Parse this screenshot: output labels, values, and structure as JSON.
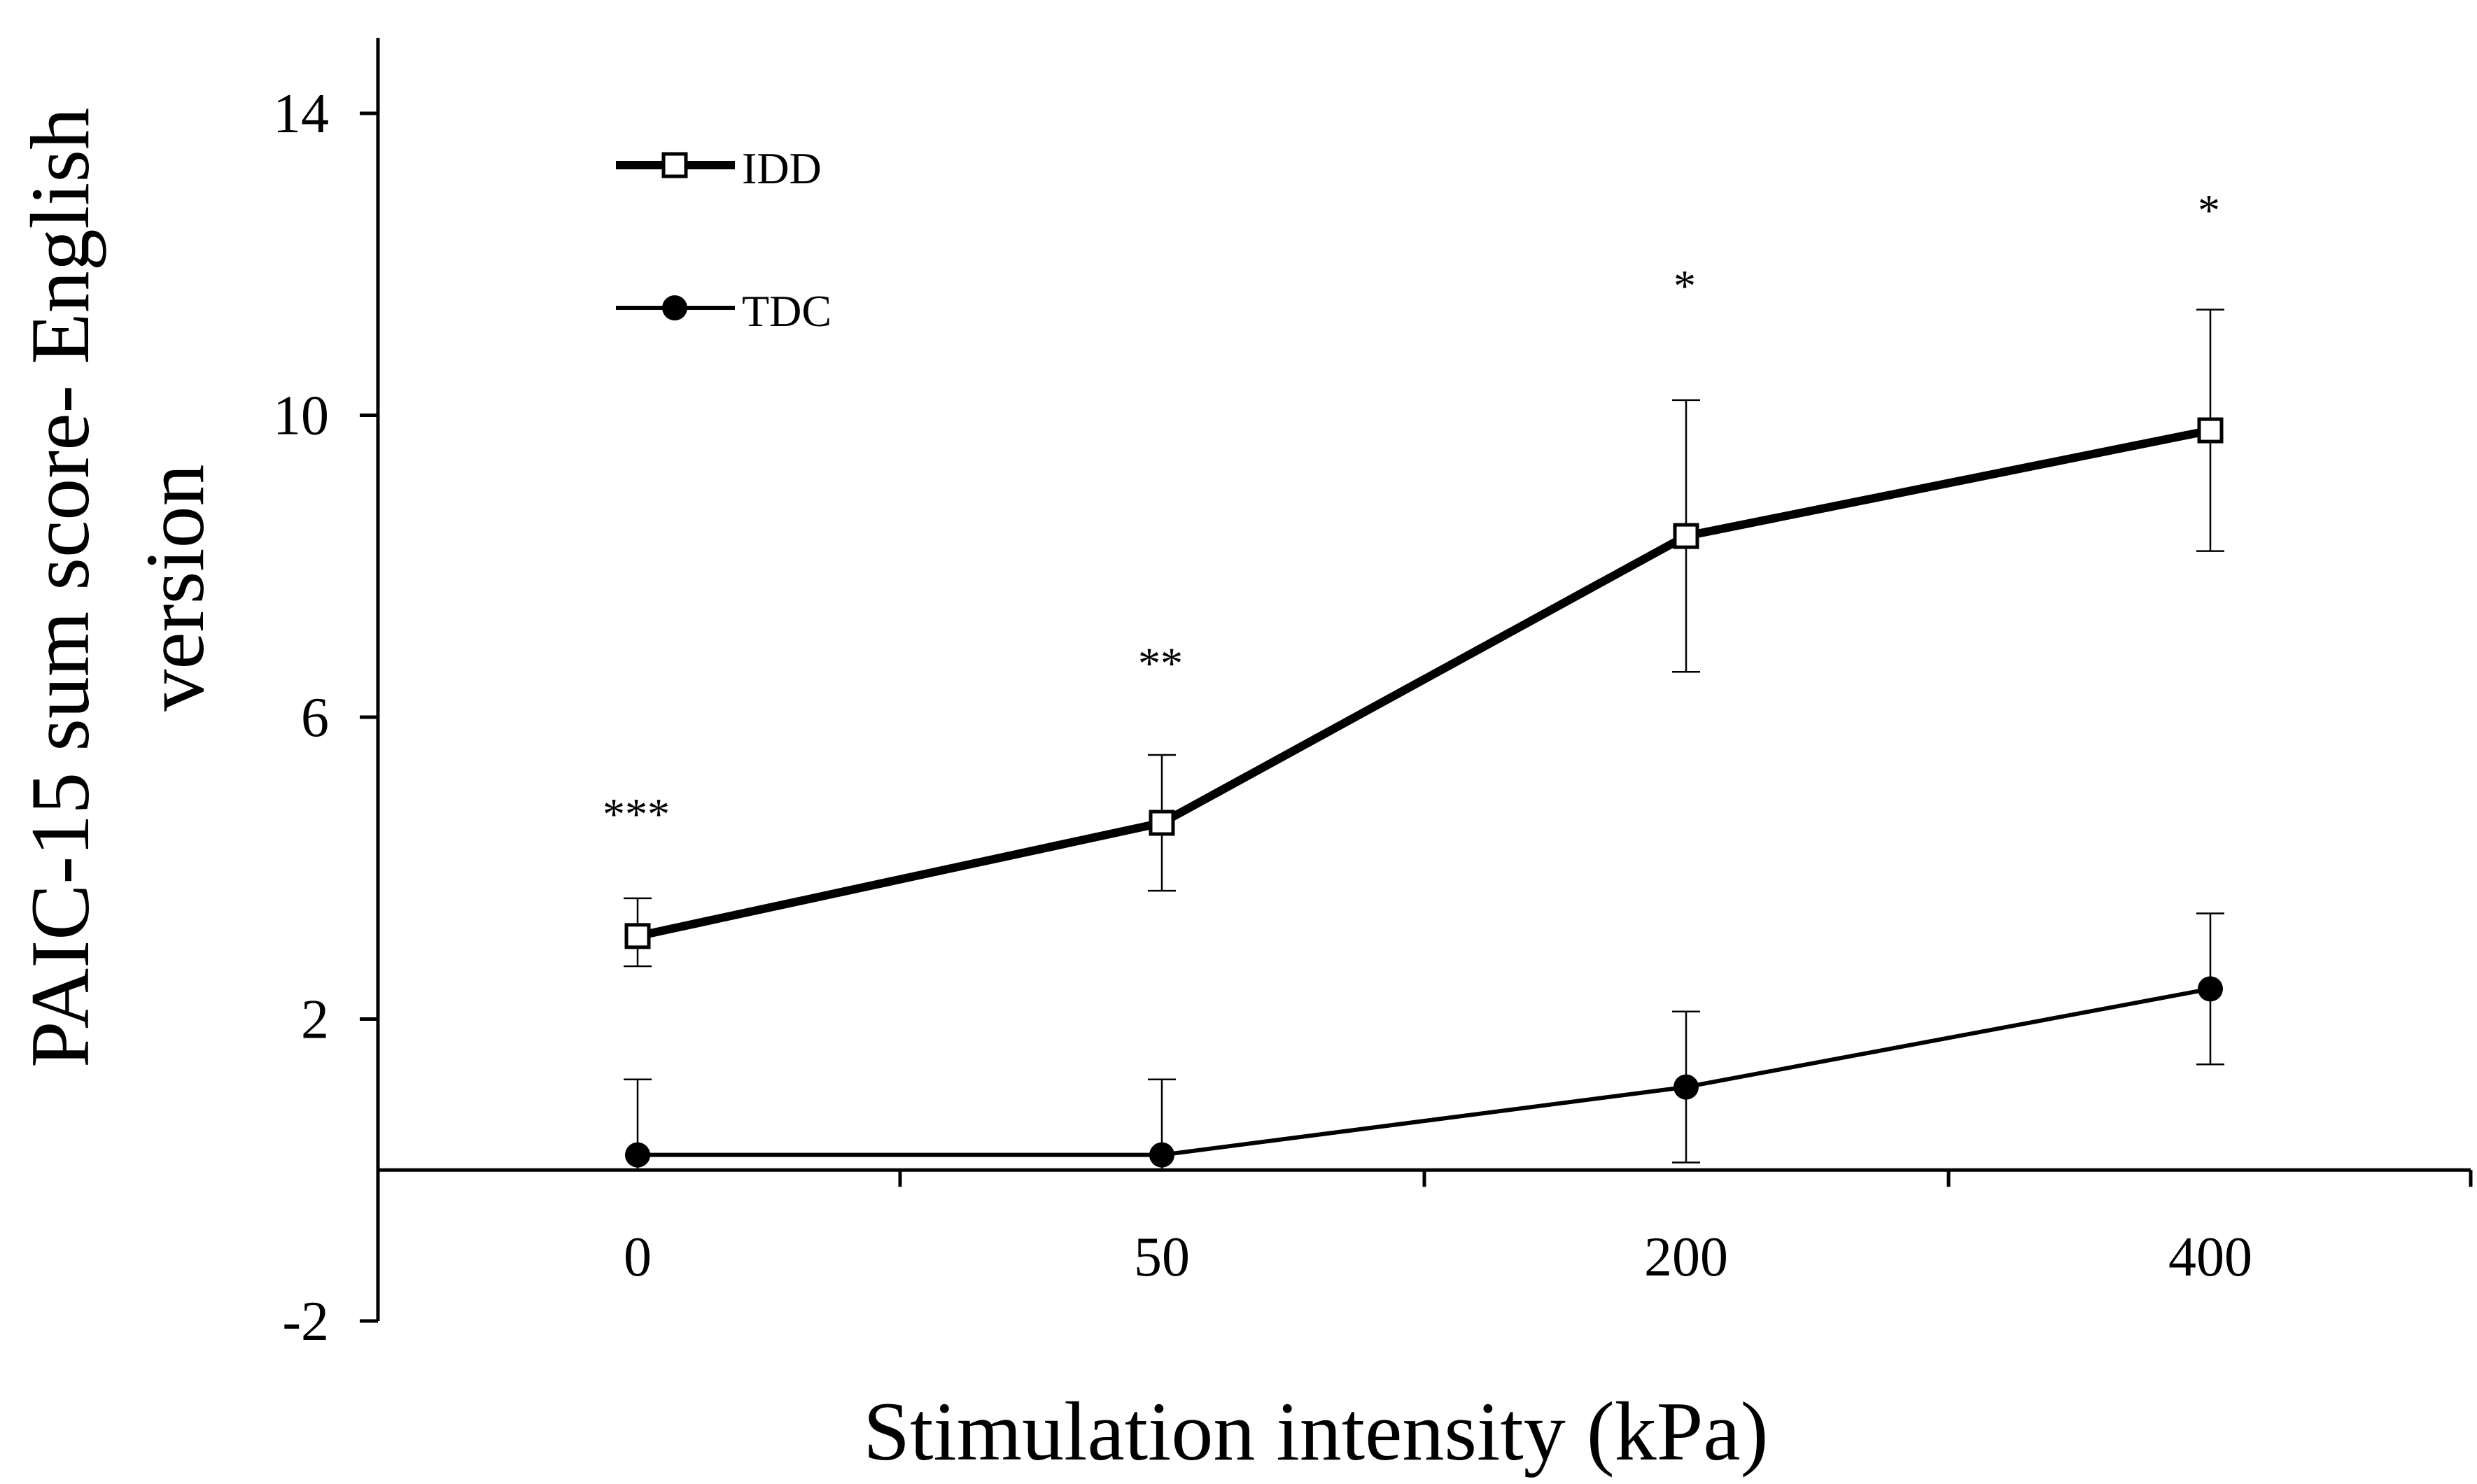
{
  "chart_data": {
    "type": "line",
    "title": "",
    "xlabel": "Stimulation intensity (kPa)",
    "ylabel_lines": [
      "PAIC-15 sum score- English",
      "version"
    ],
    "categories": [
      "0",
      "50",
      "200",
      "400"
    ],
    "ylim": [
      -2,
      15
    ],
    "yticks": [
      -2,
      2,
      6,
      10,
      14
    ],
    "ytick_labels": [
      "-2",
      "2",
      "6",
      "10",
      "14"
    ],
    "grid": false,
    "legend_position": "top-left",
    "series": [
      {
        "name": "IDD",
        "marker": "open-square",
        "line": "thick",
        "values": [
          3.1,
          4.6,
          8.4,
          9.8
        ],
        "error_upper": [
          3.6,
          5.5,
          10.2,
          11.4
        ],
        "error_lower": [
          2.7,
          3.7,
          6.6,
          8.2
        ]
      },
      {
        "name": "TDC",
        "marker": "filled-circle",
        "line": "thin",
        "values": [
          0.2,
          0.2,
          1.1,
          2.4
        ],
        "error_upper": [
          1.2,
          1.2,
          2.1,
          3.4
        ],
        "error_lower": [
          0.0,
          0.0,
          0.1,
          1.4
        ]
      }
    ],
    "annotations": [
      "***",
      "**",
      "*",
      "*"
    ],
    "annotation_values": [
      4.7,
      6.7,
      11.7,
      12.7
    ],
    "colors": {
      "line": "#000000",
      "marker_fill": "#ffffff",
      "background": "#ffffff"
    }
  }
}
